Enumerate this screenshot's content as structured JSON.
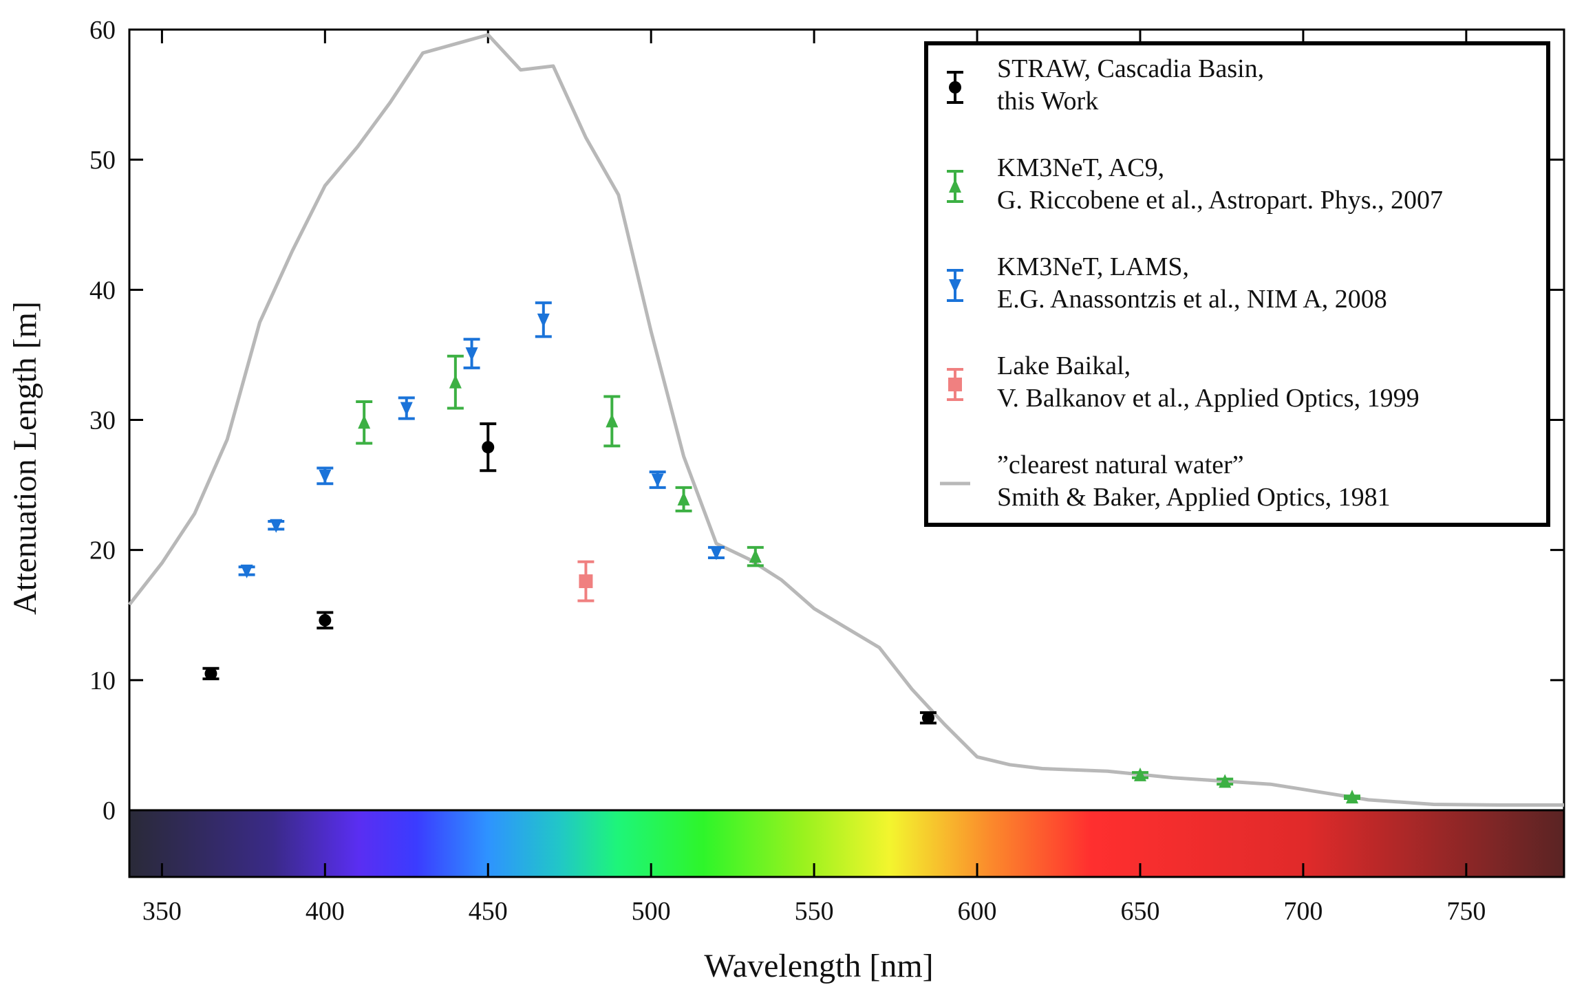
{
  "chart_data": {
    "type": "scatter",
    "xlabel": "Wavelength [nm]",
    "ylabel": "Attenuation Length [m]",
    "xlim": [
      340,
      780
    ],
    "ylim": [
      0,
      60
    ],
    "xticks": [
      350,
      400,
      450,
      500,
      550,
      600,
      650,
      700,
      750
    ],
    "yticks": [
      0,
      10,
      20,
      30,
      40,
      50,
      60
    ],
    "grid": false,
    "legend_position": "top-right",
    "spectrum_bar": true,
    "series": [
      {
        "name": "STRAW, Cascadia Basin, this Work",
        "legend_lines": [
          "STRAW, Cascadia Basin,",
          "this Work"
        ],
        "marker": "circle",
        "color": "#000000",
        "points": [
          {
            "x": 365,
            "y": 10.5,
            "err": 0.4
          },
          {
            "x": 400,
            "y": 14.6,
            "err": 0.6
          },
          {
            "x": 450,
            "y": 27.9,
            "err": 1.8
          },
          {
            "x": 585,
            "y": 7.1,
            "err": 0.4
          }
        ]
      },
      {
        "name": "KM3NeT, AC9, G. Riccobene et al., Astropart. Phys., 2007",
        "legend_lines": [
          "KM3NeT, AC9,",
          "G. Riccobene et al., Astropart. Phys., 2007"
        ],
        "marker": "triangle-up",
        "color": "#3cb043",
        "points": [
          {
            "x": 412,
            "y": 29.8,
            "err": 1.6
          },
          {
            "x": 440,
            "y": 32.9,
            "err": 2.0
          },
          {
            "x": 488,
            "y": 29.9,
            "err": 1.9
          },
          {
            "x": 510,
            "y": 23.9,
            "err": 0.9
          },
          {
            "x": 532,
            "y": 19.5,
            "err": 0.7
          },
          {
            "x": 650,
            "y": 2.7,
            "err": 0.2
          },
          {
            "x": 676,
            "y": 2.2,
            "err": 0.2
          },
          {
            "x": 715,
            "y": 1.0,
            "err": 0.1
          }
        ]
      },
      {
        "name": "KM3NeT, LAMS, E.G. Anassontzis et al., NIM A, 2008",
        "legend_lines": [
          "KM3NeT, LAMS,",
          "E.G. Anassontzis et al., NIM A, 2008"
        ],
        "marker": "triangle-down",
        "color": "#1a73d9",
        "points": [
          {
            "x": 376,
            "y": 18.4,
            "err": 0.3
          },
          {
            "x": 385,
            "y": 21.9,
            "err": 0.3
          },
          {
            "x": 400,
            "y": 25.7,
            "err": 0.6
          },
          {
            "x": 425,
            "y": 30.9,
            "err": 0.8
          },
          {
            "x": 445,
            "y": 35.1,
            "err": 1.1
          },
          {
            "x": 467,
            "y": 37.7,
            "err": 1.3
          },
          {
            "x": 502,
            "y": 25.4,
            "err": 0.6
          },
          {
            "x": 520,
            "y": 19.8,
            "err": 0.4
          }
        ]
      },
      {
        "name": "Lake Baikal, V. Balkanov et al., Applied Optics, 1999",
        "legend_lines": [
          "Lake Baikal,",
          "V. Balkanov et al., Applied Optics, 1999"
        ],
        "marker": "square",
        "color": "#f08080",
        "points": [
          {
            "x": 480,
            "y": 17.6,
            "err": 1.5
          }
        ]
      },
      {
        "name": "\"clearest natural water\" Smith & Baker, Applied Optics, 1981",
        "legend_lines": [
          "”clearest natural water”",
          "Smith & Baker, Applied Optics, 1981"
        ],
        "marker": "line",
        "color": "#b8b8b8",
        "points": [
          {
            "x": 340,
            "y": 15.8
          },
          {
            "x": 350,
            "y": 19.0
          },
          {
            "x": 360,
            "y": 22.8
          },
          {
            "x": 370,
            "y": 28.5
          },
          {
            "x": 380,
            "y": 37.5
          },
          {
            "x": 390,
            "y": 43.0
          },
          {
            "x": 400,
            "y": 48.0
          },
          {
            "x": 410,
            "y": 51.0
          },
          {
            "x": 420,
            "y": 54.4
          },
          {
            "x": 430,
            "y": 58.2
          },
          {
            "x": 440,
            "y": 58.9
          },
          {
            "x": 450,
            "y": 59.6
          },
          {
            "x": 460,
            "y": 56.9
          },
          {
            "x": 470,
            "y": 57.2
          },
          {
            "x": 480,
            "y": 51.7
          },
          {
            "x": 490,
            "y": 47.3
          },
          {
            "x": 500,
            "y": 36.8
          },
          {
            "x": 510,
            "y": 27.2
          },
          {
            "x": 520,
            "y": 20.5
          },
          {
            "x": 530,
            "y": 19.3
          },
          {
            "x": 540,
            "y": 17.7
          },
          {
            "x": 550,
            "y": 15.5
          },
          {
            "x": 560,
            "y": 14.0
          },
          {
            "x": 570,
            "y": 12.5
          },
          {
            "x": 580,
            "y": 9.3
          },
          {
            "x": 590,
            "y": 6.6
          },
          {
            "x": 600,
            "y": 4.1
          },
          {
            "x": 610,
            "y": 3.5
          },
          {
            "x": 620,
            "y": 3.2
          },
          {
            "x": 640,
            "y": 3.0
          },
          {
            "x": 660,
            "y": 2.5
          },
          {
            "x": 690,
            "y": 2.0
          },
          {
            "x": 700,
            "y": 1.6
          },
          {
            "x": 720,
            "y": 0.8
          },
          {
            "x": 740,
            "y": 0.45
          },
          {
            "x": 760,
            "y": 0.4
          },
          {
            "x": 780,
            "y": 0.4
          }
        ]
      }
    ]
  }
}
